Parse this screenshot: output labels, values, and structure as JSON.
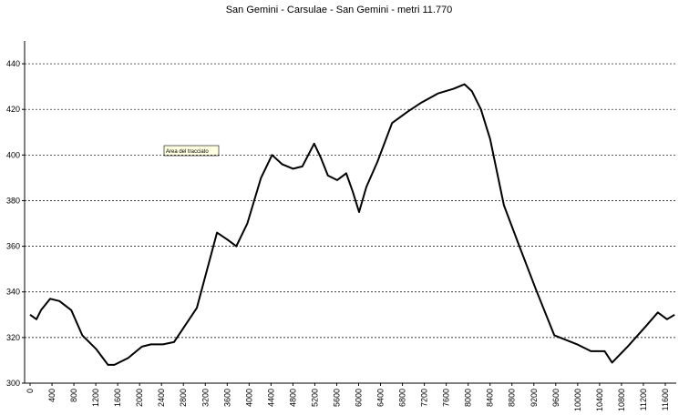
{
  "chart_data": {
    "type": "line",
    "title": "San Gemini - Carsulae - San Gemini - metri 11.770",
    "annotation": "Area del tracciato",
    "x": [
      0,
      117,
      200,
      368,
      536,
      753,
      954,
      1205,
      1423,
      1540,
      1791,
      2042,
      2209,
      2427,
      2628,
      3046,
      3414,
      3598,
      3766,
      3967,
      4218,
      4418,
      4602,
      4803,
      4971,
      5188,
      5306,
      5439,
      5607,
      5774,
      5891,
      6008,
      6142,
      6343,
      6611,
      6895,
      7146,
      7448,
      7732,
      7933,
      8067,
      8234,
      8402,
      8653,
      8904,
      9239,
      9573,
      9992,
      10243,
      10494,
      10628,
      10912,
      11247,
      11464,
      11632,
      11770
    ],
    "values": [
      330,
      328,
      332,
      337,
      336,
      332,
      321,
      315,
      308,
      308,
      311,
      316,
      317,
      317,
      318,
      333,
      366,
      363,
      360,
      370,
      390,
      400,
      396,
      394,
      395,
      405,
      399,
      391,
      389,
      392,
      384,
      375,
      386,
      397,
      414,
      419,
      423,
      427,
      429,
      431,
      428,
      420,
      407,
      378,
      362,
      341,
      321,
      317,
      314,
      314,
      309,
      316,
      325,
      331,
      328,
      330
    ],
    "color": "#000000",
    "xlim": [
      0,
      11800
    ],
    "xticks": [
      0,
      400,
      800,
      1200,
      1600,
      2000,
      2400,
      2800,
      3200,
      3600,
      4000,
      4400,
      4800,
      5200,
      5600,
      6000,
      6400,
      6800,
      7200,
      7600,
      8000,
      8400,
      8800,
      9200,
      9600,
      10000,
      10400,
      10800,
      11200,
      11600
    ],
    "ylim": [
      300,
      450
    ],
    "yticks": [
      300,
      320,
      340,
      360,
      380,
      400,
      420,
      440
    ],
    "grid": true
  }
}
